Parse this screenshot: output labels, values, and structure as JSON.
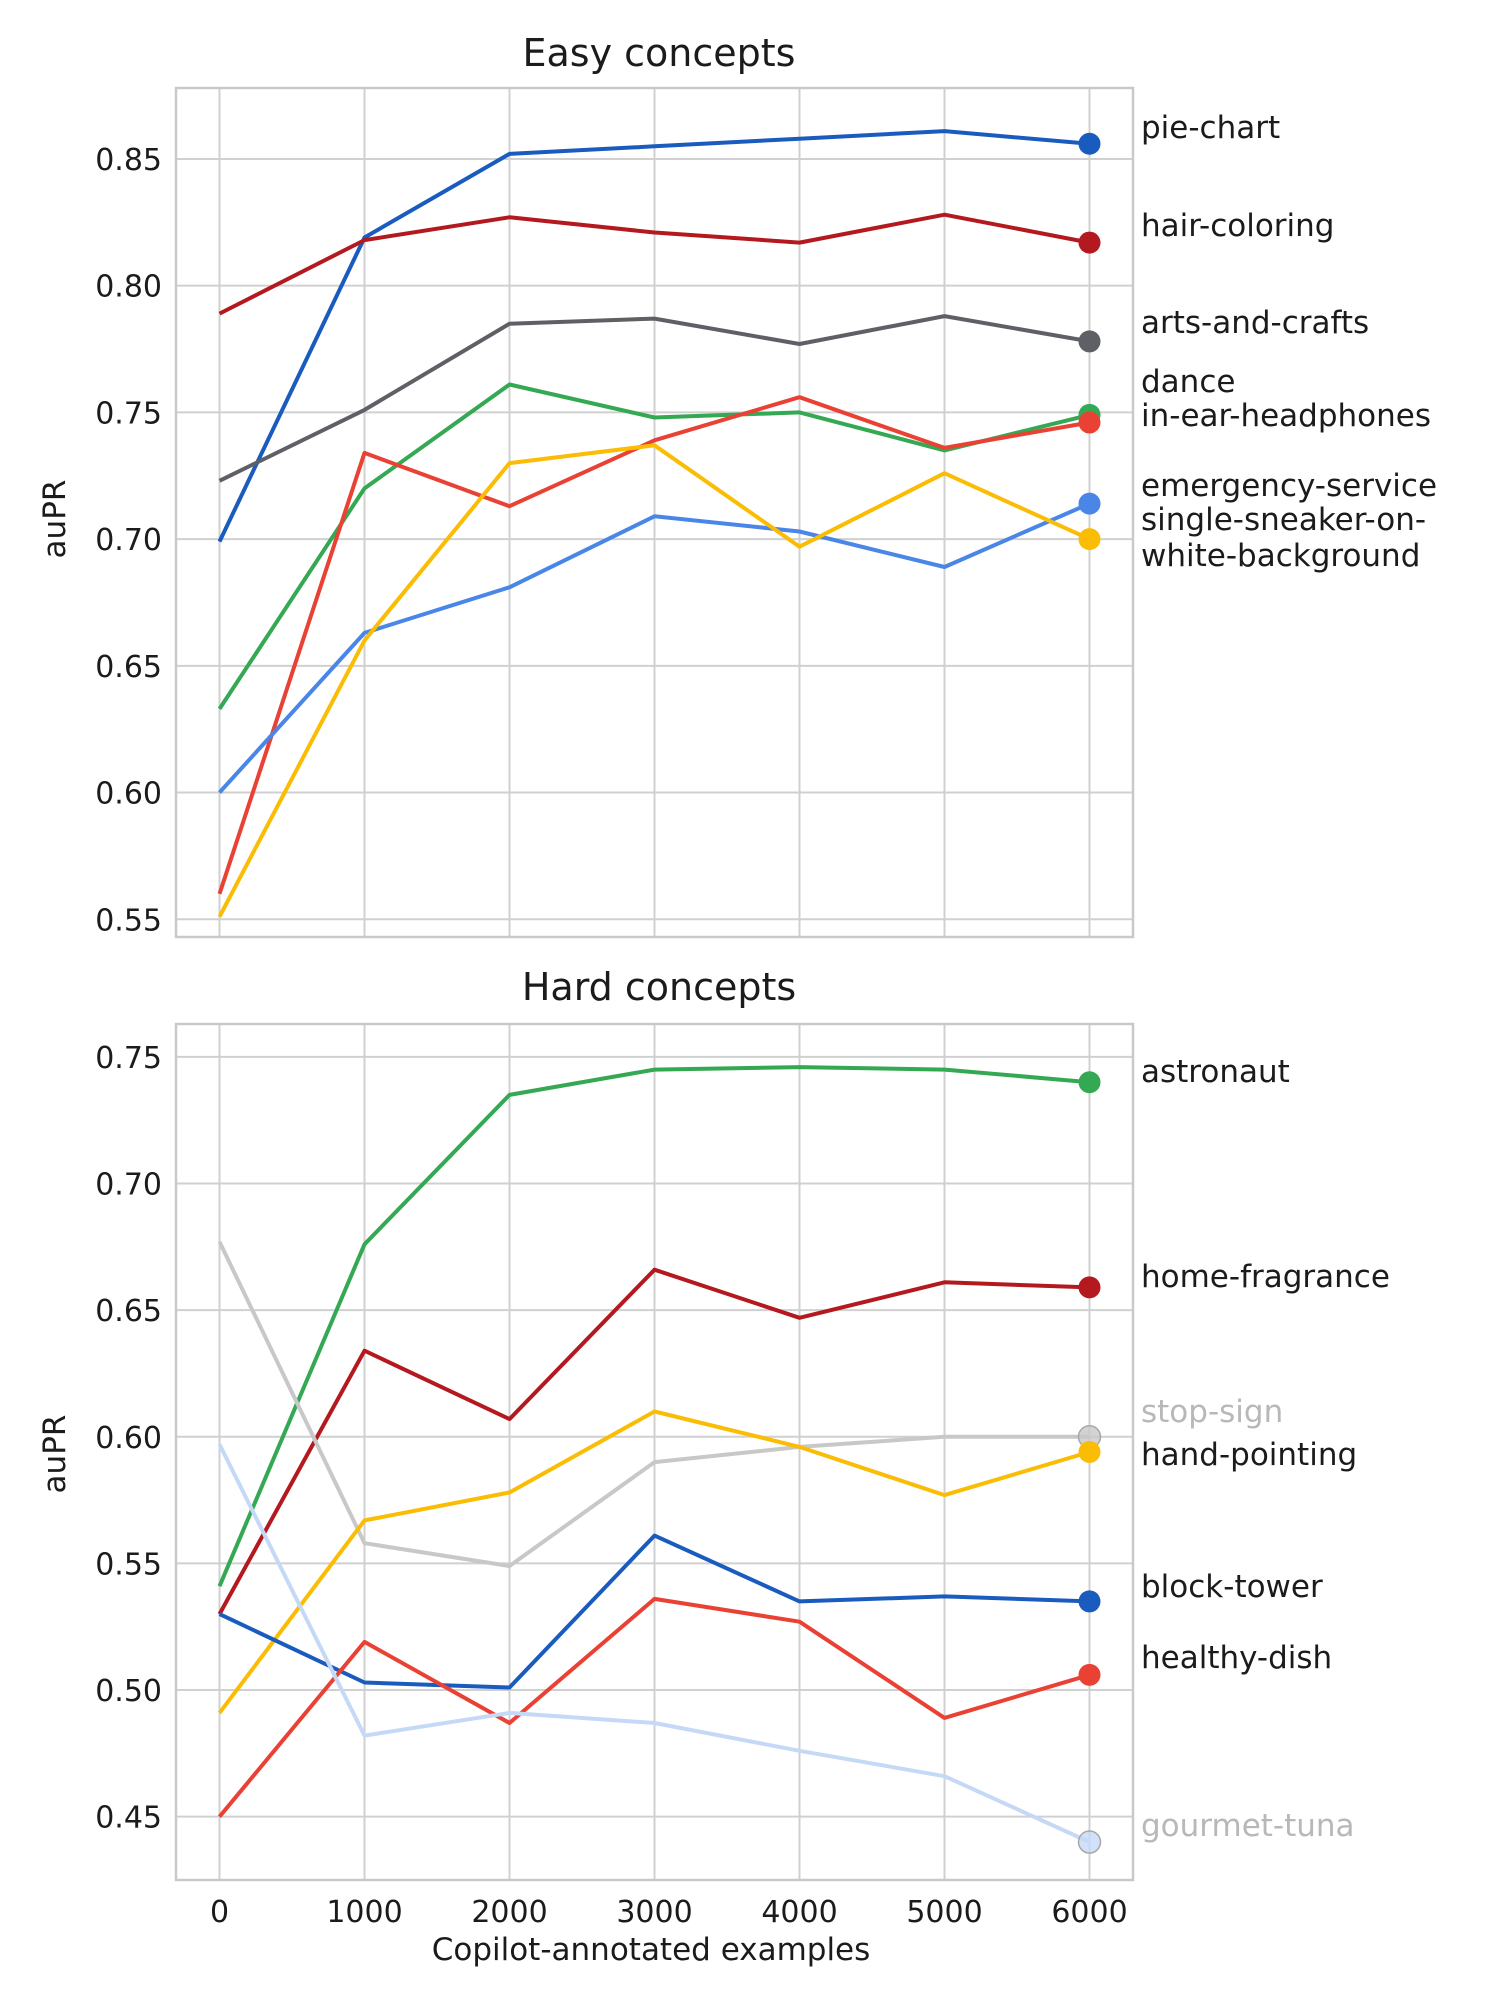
{
  "chart_data": [
    {
      "type": "line",
      "title": "Easy concepts",
      "xlabel": "",
      "ylabel": "auPR",
      "x": [
        0,
        1000,
        2000,
        3000,
        4000,
        5000,
        6000
      ],
      "xlim": [
        -300,
        6300
      ],
      "ylim": [
        0.543,
        0.878
      ],
      "yticks": [
        0.55,
        0.6,
        0.65,
        0.7,
        0.75,
        0.8,
        0.85
      ],
      "ytick_labels": [
        "0.55",
        "0.60",
        "0.65",
        "0.70",
        "0.75",
        "0.80",
        "0.85"
      ],
      "grid": true,
      "legend": "direct labels at right end of each line",
      "series": [
        {
          "name": "pie-chart",
          "color": "#1a5bbf",
          "values": [
            0.699,
            0.819,
            0.852,
            0.855,
            0.858,
            0.861,
            0.856
          ]
        },
        {
          "name": "hair-coloring",
          "color": "#b3191f",
          "values": [
            0.789,
            0.818,
            0.827,
            0.821,
            0.817,
            0.828,
            0.817
          ]
        },
        {
          "name": "arts-and-crafts",
          "color": "#5e6066",
          "values": [
            0.723,
            0.751,
            0.785,
            0.787,
            0.777,
            0.788,
            0.778
          ]
        },
        {
          "name": "dance",
          "color": "#34a853",
          "values": [
            0.633,
            0.72,
            0.761,
            0.748,
            0.75,
            0.735,
            0.749
          ]
        },
        {
          "name": "in-ear-headphones",
          "color": "#e94235",
          "values": [
            0.56,
            0.734,
            0.713,
            0.739,
            0.756,
            0.736,
            0.746
          ]
        },
        {
          "name": "emergency-service",
          "color": "#4a86e8",
          "values": [
            0.6,
            0.663,
            0.681,
            0.709,
            0.703,
            0.689,
            0.714
          ]
        },
        {
          "name": "single-sneaker-on-white-background",
          "color": "#fbbc04",
          "values": [
            0.551,
            0.66,
            0.73,
            0.737,
            0.697,
            0.726,
            0.7
          ]
        }
      ],
      "labels": [
        {
          "lines": [
            "pie-chart"
          ],
          "color": "#1b1b1b"
        },
        {
          "lines": [
            "hair-coloring"
          ],
          "color": "#1b1b1b"
        },
        {
          "lines": [
            "arts-and-crafts"
          ],
          "color": "#1b1b1b"
        },
        {
          "lines": [
            "dance"
          ],
          "color": "#1b1b1b"
        },
        {
          "lines": [
            "in-ear-headphones"
          ],
          "color": "#1b1b1b"
        },
        {
          "lines": [
            "emergency-service"
          ],
          "color": "#1b1b1b"
        },
        {
          "lines": [
            "single-sneaker-on-",
            "white-background"
          ],
          "color": "#1b1b1b"
        }
      ]
    },
    {
      "type": "line",
      "title": "Hard concepts",
      "xlabel": "Copilot-annotated examples",
      "ylabel": "auPR",
      "x": [
        0,
        1000,
        2000,
        3000,
        4000,
        5000,
        6000
      ],
      "xlim": [
        -300,
        6300
      ],
      "xticks": [
        0,
        1000,
        2000,
        3000,
        4000,
        5000,
        6000
      ],
      "xtick_labels": [
        "0",
        "1000",
        "2000",
        "3000",
        "4000",
        "5000",
        "6000"
      ],
      "ylim": [
        0.425,
        0.763
      ],
      "yticks": [
        0.45,
        0.5,
        0.55,
        0.6,
        0.65,
        0.7,
        0.75
      ],
      "ytick_labels": [
        "0.45",
        "0.50",
        "0.55",
        "0.60",
        "0.65",
        "0.70",
        "0.75"
      ],
      "grid": true,
      "legend": "direct labels at right end of each line",
      "series": [
        {
          "name": "astronaut",
          "color": "#34a853",
          "values": [
            0.541,
            0.676,
            0.735,
            0.745,
            0.746,
            0.745,
            0.74
          ]
        },
        {
          "name": "home-fragrance",
          "color": "#b3191f",
          "values": [
            0.53,
            0.634,
            0.607,
            0.666,
            0.647,
            0.661,
            0.659
          ]
        },
        {
          "name": "stop-sign",
          "color": "#c8c8c8",
          "values": [
            0.677,
            0.558,
            0.549,
            0.59,
            0.596,
            0.6,
            0.6
          ]
        },
        {
          "name": "hand-pointing",
          "color": "#fbbc04",
          "values": [
            0.491,
            0.567,
            0.578,
            0.61,
            0.596,
            0.577,
            0.594
          ]
        },
        {
          "name": "block-tower",
          "color": "#1a5bbf",
          "values": [
            0.53,
            0.503,
            0.501,
            0.561,
            0.535,
            0.537,
            0.535
          ]
        },
        {
          "name": "healthy-dish",
          "color": "#e94235",
          "values": [
            0.45,
            0.519,
            0.487,
            0.536,
            0.527,
            0.489,
            0.506
          ]
        },
        {
          "name": "gourmet-tuna",
          "color": "#c5d9f7",
          "values": [
            0.597,
            0.482,
            0.491,
            0.487,
            0.476,
            0.466,
            0.44
          ]
        }
      ],
      "labels": [
        {
          "lines": [
            "astronaut"
          ],
          "color": "#1b1b1b"
        },
        {
          "lines": [
            "home-fragrance"
          ],
          "color": "#1b1b1b"
        },
        {
          "lines": [
            "stop-sign"
          ],
          "color": "#b8b8b8"
        },
        {
          "lines": [
            "hand-pointing"
          ],
          "color": "#1b1b1b"
        },
        {
          "lines": [
            "block-tower"
          ],
          "color": "#1b1b1b"
        },
        {
          "lines": [
            "healthy-dish"
          ],
          "color": "#1b1b1b"
        },
        {
          "lines": [
            "gourmet-tuna"
          ],
          "color": "#b8b8b8"
        }
      ]
    }
  ]
}
